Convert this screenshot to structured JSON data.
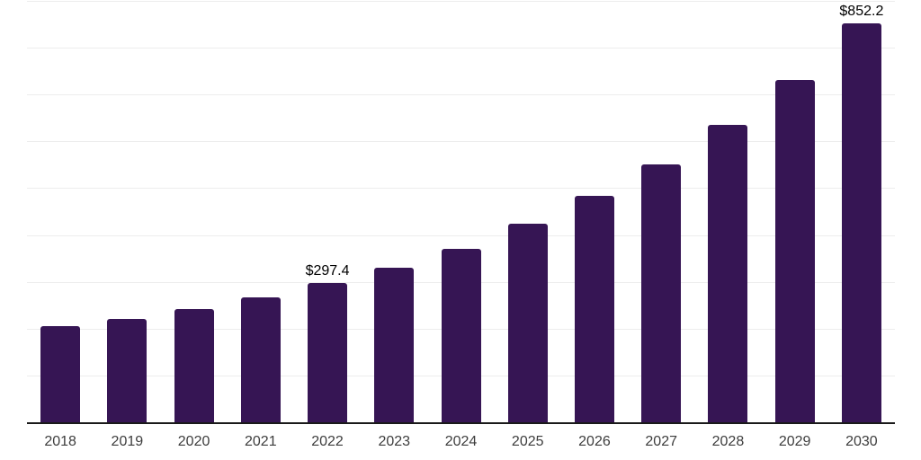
{
  "page": {
    "background": "#ffffff"
  },
  "chart_data": {
    "type": "bar",
    "title": "",
    "xlabel": "",
    "ylabel": "",
    "categories": [
      "2018",
      "2019",
      "2020",
      "2021",
      "2022",
      "2023",
      "2024",
      "2025",
      "2026",
      "2027",
      "2028",
      "2029",
      "2030"
    ],
    "values": [
      205,
      220,
      242,
      266,
      297.4,
      331,
      371,
      424,
      483,
      550,
      636,
      732,
      852.2
    ],
    "data_labels": [
      {
        "category": "2022",
        "text": "$297.4"
      },
      {
        "category": "2030",
        "text": "$852.2"
      }
    ],
    "ylim": [
      0,
      900
    ],
    "grid_step": 100,
    "grid": "on",
    "legend": "none",
    "y_tick_labels_visible": false,
    "colors": {
      "bar": "#361554",
      "gridline": "#ededed",
      "axis": "#1a1a1a",
      "tick_label": "#3d3d3d",
      "data_label": "#000000"
    }
  }
}
